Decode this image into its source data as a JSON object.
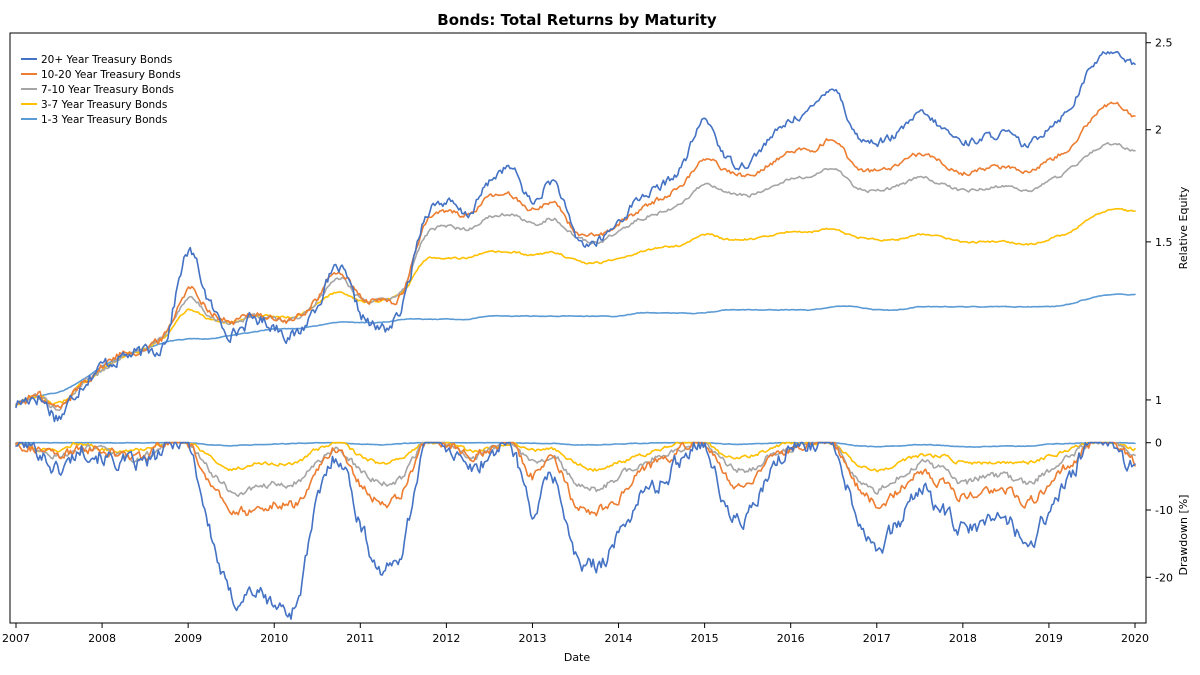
{
  "chart_data": {
    "type": "line",
    "title": "Bonds: Total Returns by Maturity",
    "xlabel": "Date",
    "x_ticks": [
      "2007",
      "2008",
      "2009",
      "2010",
      "2011",
      "2012",
      "2013",
      "2014",
      "2015",
      "2016",
      "2017",
      "2018",
      "2019",
      "2020"
    ],
    "legend_position": "top-left",
    "grid": false,
    "panels": [
      {
        "id": "equity",
        "ylabel": "Relative Equity",
        "y_scale": "log",
        "ylim": [
          0.9,
          2.55
        ],
        "y_ticks": [
          "1",
          "1.5",
          "2",
          "2.5"
        ],
        "y_axis_side": "right"
      },
      {
        "id": "drawdown",
        "ylabel": "Drawdown [%]",
        "ylim": [
          -26.5,
          1.0
        ],
        "y_ticks": [
          "0",
          "-10",
          "-20"
        ],
        "y_axis_side": "right"
      }
    ],
    "x": [
      2007.0,
      2007.25,
      2007.5,
      2007.75,
      2008.0,
      2008.25,
      2008.5,
      2008.75,
      2009.0,
      2009.25,
      2009.5,
      2009.75,
      2010.0,
      2010.25,
      2010.5,
      2010.75,
      2011.0,
      2011.25,
      2011.5,
      2011.75,
      2012.0,
      2012.25,
      2012.5,
      2012.75,
      2013.0,
      2013.25,
      2013.5,
      2013.75,
      2014.0,
      2014.25,
      2014.5,
      2014.75,
      2015.0,
      2015.25,
      2015.5,
      2015.75,
      2016.0,
      2016.25,
      2016.5,
      2016.75,
      2017.0,
      2017.25,
      2017.5,
      2017.75,
      2018.0,
      2018.25,
      2018.5,
      2018.75,
      2019.0,
      2019.25,
      2019.5,
      2019.75,
      2020.0
    ],
    "series": [
      {
        "name": "20+ Year Treasury Bonds",
        "color": "#4472C4",
        "equity": [
          0.99,
          1.01,
          0.96,
          1.04,
          1.09,
          1.12,
          1.13,
          1.18,
          1.46,
          1.28,
          1.19,
          1.23,
          1.21,
          1.18,
          1.28,
          1.4,
          1.25,
          1.2,
          1.28,
          1.6,
          1.66,
          1.61,
          1.75,
          1.81,
          1.66,
          1.75,
          1.52,
          1.5,
          1.58,
          1.68,
          1.73,
          1.83,
          2.05,
          1.86,
          1.84,
          1.95,
          2.05,
          2.11,
          2.23,
          1.98,
          1.94,
          1.98,
          2.08,
          2.01,
          1.94,
          1.96,
          1.98,
          1.92,
          2.02,
          2.12,
          2.35,
          2.45,
          2.36
        ],
        "drawdown": [
          0,
          -1,
          -4,
          -1,
          -2,
          -3,
          -3,
          -1,
          0,
          -13,
          -23,
          -22,
          -24,
          -24,
          -9,
          -2,
          -12,
          -19,
          -15,
          0,
          0,
          -4,
          -2,
          0,
          -10,
          -5,
          -17,
          -18,
          -14,
          -8,
          -6,
          -2,
          0,
          -10,
          -11,
          -5,
          -1,
          0,
          0,
          -10,
          -15,
          -12,
          -7,
          -10,
          -13,
          -12,
          -11,
          -15,
          -10,
          -5,
          0,
          0,
          -4
        ]
      },
      {
        "name": "10-20 Year Treasury Bonds",
        "color": "#ED7D31",
        "equity": [
          0.99,
          1.01,
          0.98,
          1.04,
          1.09,
          1.13,
          1.14,
          1.19,
          1.33,
          1.26,
          1.22,
          1.25,
          1.23,
          1.23,
          1.3,
          1.39,
          1.3,
          1.29,
          1.32,
          1.57,
          1.62,
          1.61,
          1.68,
          1.69,
          1.63,
          1.66,
          1.54,
          1.52,
          1.57,
          1.63,
          1.68,
          1.74,
          1.86,
          1.8,
          1.78,
          1.83,
          1.89,
          1.9,
          1.95,
          1.82,
          1.8,
          1.82,
          1.88,
          1.84,
          1.79,
          1.81,
          1.82,
          1.8,
          1.85,
          1.92,
          2.06,
          2.14,
          2.07
        ],
        "drawdown": [
          0,
          -1,
          -2,
          -1,
          -1,
          -2,
          -2,
          0,
          0,
          -6,
          -10,
          -10,
          -9,
          -9,
          -4,
          -1,
          -6,
          -9,
          -7,
          0,
          0,
          -2,
          -1,
          0,
          -5,
          -3,
          -9,
          -10,
          -8,
          -4,
          -3,
          -1,
          0,
          -5,
          -6,
          -3,
          -1,
          0,
          0,
          -6,
          -9,
          -7,
          -4,
          -6,
          -8,
          -7,
          -7,
          -9,
          -6,
          -3,
          0,
          0,
          -3
        ]
      },
      {
        "name": "7-10 Year Treasury Bonds",
        "color": "#A5A5A5",
        "equity": [
          0.99,
          1.01,
          0.98,
          1.04,
          1.08,
          1.12,
          1.14,
          1.19,
          1.3,
          1.24,
          1.22,
          1.24,
          1.23,
          1.23,
          1.29,
          1.37,
          1.3,
          1.29,
          1.33,
          1.52,
          1.56,
          1.55,
          1.6,
          1.61,
          1.57,
          1.59,
          1.52,
          1.5,
          1.54,
          1.59,
          1.62,
          1.66,
          1.74,
          1.7,
          1.69,
          1.72,
          1.76,
          1.78,
          1.81,
          1.73,
          1.71,
          1.73,
          1.77,
          1.74,
          1.71,
          1.72,
          1.73,
          1.71,
          1.75,
          1.81,
          1.89,
          1.93,
          1.89
        ],
        "drawdown": [
          0,
          -1,
          -2,
          -1,
          -1,
          -2,
          -2,
          0,
          0,
          -4,
          -7,
          -7,
          -6,
          -6,
          -3,
          -1,
          -4,
          -6,
          -5,
          0,
          0,
          -2,
          -1,
          0,
          -3,
          -2,
          -6,
          -7,
          -5,
          -3,
          -2,
          -1,
          0,
          -3,
          -4,
          -2,
          -1,
          0,
          0,
          -5,
          -7,
          -5,
          -3,
          -4,
          -6,
          -5,
          -5,
          -6,
          -4,
          -2,
          0,
          0,
          -2
        ]
      },
      {
        "name": "3-7 Year Treasury Bonds",
        "color": "#FFC000",
        "equity": [
          0.99,
          1.01,
          0.99,
          1.04,
          1.08,
          1.12,
          1.14,
          1.18,
          1.26,
          1.23,
          1.22,
          1.24,
          1.24,
          1.24,
          1.28,
          1.32,
          1.29,
          1.29,
          1.32,
          1.43,
          1.44,
          1.44,
          1.46,
          1.46,
          1.45,
          1.46,
          1.43,
          1.42,
          1.44,
          1.46,
          1.48,
          1.49,
          1.53,
          1.51,
          1.51,
          1.52,
          1.54,
          1.54,
          1.55,
          1.52,
          1.51,
          1.51,
          1.53,
          1.52,
          1.5,
          1.5,
          1.5,
          1.49,
          1.51,
          1.54,
          1.6,
          1.63,
          1.62
        ],
        "drawdown": [
          0,
          -1,
          -1,
          0,
          -1,
          -1,
          -1,
          0,
          0,
          -2,
          -4,
          -3,
          -3,
          -3,
          -1,
          0,
          -2,
          -3,
          -2,
          0,
          0,
          -1,
          -1,
          0,
          -1,
          -1,
          -3,
          -4,
          -3,
          -2,
          -1,
          0,
          0,
          -2,
          -2,
          -1,
          0,
          0,
          0,
          -3,
          -4,
          -3,
          -2,
          -2,
          -3,
          -3,
          -3,
          -3,
          -2,
          -1,
          0,
          0,
          -1
        ]
      },
      {
        "name": "1-3 Year Treasury Bonds",
        "color": "#5B9BD5",
        "equity": [
          0.99,
          1.01,
          1.02,
          1.05,
          1.09,
          1.12,
          1.14,
          1.16,
          1.17,
          1.17,
          1.18,
          1.19,
          1.2,
          1.2,
          1.21,
          1.22,
          1.22,
          1.22,
          1.23,
          1.23,
          1.23,
          1.23,
          1.24,
          1.24,
          1.24,
          1.24,
          1.24,
          1.24,
          1.24,
          1.25,
          1.25,
          1.25,
          1.25,
          1.26,
          1.26,
          1.26,
          1.26,
          1.26,
          1.27,
          1.27,
          1.26,
          1.26,
          1.27,
          1.27,
          1.27,
          1.27,
          1.27,
          1.27,
          1.27,
          1.28,
          1.3,
          1.31,
          1.31
        ],
        "drawdown": [
          0,
          0,
          0,
          0,
          0,
          0,
          0,
          0,
          0,
          -0.3,
          -0.4,
          -0.3,
          -0.2,
          -0.1,
          0,
          0,
          -0.2,
          -0.3,
          -0.1,
          0,
          0,
          0,
          0,
          0,
          -0.1,
          -0.1,
          -0.3,
          -0.3,
          -0.2,
          -0.1,
          0,
          0,
          0,
          -0.2,
          -0.2,
          -0.1,
          0,
          0,
          0,
          -0.4,
          -0.6,
          -0.5,
          -0.3,
          -0.4,
          -0.6,
          -0.6,
          -0.5,
          -0.5,
          -0.2,
          -0.1,
          0,
          0,
          -0.1
        ]
      }
    ]
  }
}
